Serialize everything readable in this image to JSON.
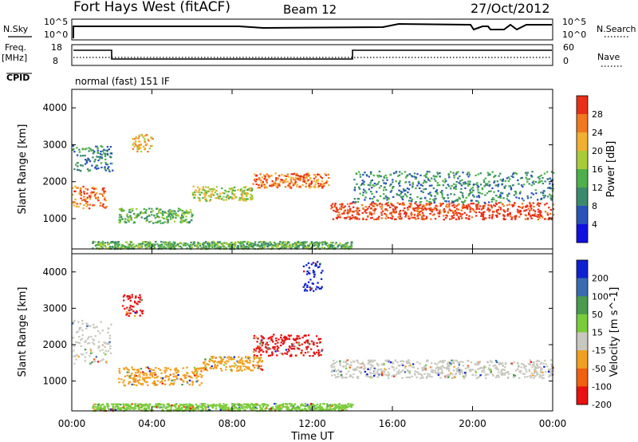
{
  "header": {
    "station": "Fort Hays West (fitACF)",
    "beam": "Beam 12",
    "date": "27/Oct/2012"
  },
  "status_panels": {
    "nsky_label": "N.Sky",
    "nsearch_label": "N.Search",
    "noise_ticks": [
      "10^5",
      "10^0"
    ],
    "freq_label_top": "Freq.",
    "freq_label_unit": "[MHz]",
    "freq_ticks": [
      "18",
      "8"
    ],
    "nave_label": "Nave",
    "nave_ticks": [
      "60",
      "0"
    ],
    "cpid_label": "CPID",
    "cpid_text": "normal (fast) 151 IF"
  },
  "chart_data": [
    {
      "type": "heatmap",
      "panel": "power",
      "ylabel": "Slant Range [km]",
      "xlabel": "",
      "yticks": [
        "1000",
        "2000",
        "3000",
        "4000"
      ],
      "ytick_values": [
        1000,
        2000,
        3000,
        4000
      ],
      "ylim": [
        180,
        4500
      ],
      "xlim": [
        0,
        24
      ],
      "colorbar": {
        "label": "Power [dB]",
        "ticks": [
          "4",
          "8",
          "12",
          "16",
          "20",
          "24",
          "28"
        ],
        "colors": [
          "#1010e0",
          "#2a52b8",
          "#3c8a6e",
          "#4db04a",
          "#a8cc38",
          "#f0b030",
          "#f07820",
          "#e83018"
        ]
      },
      "echo_bands": [
        {
          "t0": 0.0,
          "t1": 1.7,
          "r0": 1300,
          "r1": 1900,
          "level": 6
        },
        {
          "t0": 0.0,
          "t1": 2.0,
          "r0": 2300,
          "r1": 3000,
          "level": 2
        },
        {
          "t0": 2.3,
          "t1": 6.0,
          "r0": 900,
          "r1": 1300,
          "level": 3
        },
        {
          "t0": 6.0,
          "t1": 9.0,
          "r0": 1500,
          "r1": 1900,
          "level": 4
        },
        {
          "t0": 9.0,
          "t1": 12.8,
          "r0": 1850,
          "r1": 2250,
          "level": 6
        },
        {
          "t0": 12.9,
          "t1": 24.0,
          "r0": 1000,
          "r1": 1450,
          "level": 7
        },
        {
          "t0": 14.0,
          "t1": 24.0,
          "r0": 1450,
          "r1": 2300,
          "level": 2
        },
        {
          "t0": 3.0,
          "t1": 4.0,
          "r0": 2800,
          "r1": 3300,
          "level": 5
        },
        {
          "t0": 1.0,
          "t1": 14.0,
          "r0": 200,
          "r1": 400,
          "level": 3
        }
      ]
    },
    {
      "type": "heatmap",
      "panel": "velocity",
      "ylabel": "Slant Range [km]",
      "xlabel": "Time UT",
      "yticks": [
        "1000",
        "2000",
        "3000",
        "4000"
      ],
      "ytick_values": [
        1000,
        2000,
        3000,
        4000
      ],
      "ylim": [
        180,
        4500
      ],
      "xlim": [
        0,
        24
      ],
      "xticks": [
        "00:00",
        "04:00",
        "08:00",
        "12:00",
        "16:00",
        "20:00",
        "00:00"
      ],
      "xtick_values": [
        0,
        4,
        8,
        12,
        16,
        20,
        24
      ],
      "colorbar": {
        "label": "Velocity [m s^-1]",
        "ticks": [
          "200",
          "100",
          "50",
          "15",
          "-15",
          "-50",
          "-100",
          "-200"
        ],
        "colors": [
          "#1020d0",
          "#3a6ab0",
          "#4a9a50",
          "#7acc3a",
          "#c8c8c0",
          "#f0a020",
          "#f06010",
          "#e81010"
        ]
      },
      "echo_bands": [
        {
          "t0": 0.0,
          "t1": 2.0,
          "r0": 1500,
          "r1": 2700,
          "vel": "gray"
        },
        {
          "t0": 2.5,
          "t1": 3.5,
          "r0": 2800,
          "r1": 3400,
          "vel": "red"
        },
        {
          "t0": 2.3,
          "t1": 6.5,
          "r0": 900,
          "r1": 1400,
          "vel": "orange"
        },
        {
          "t0": 6.5,
          "t1": 9.5,
          "r0": 1300,
          "r1": 1700,
          "vel": "orange"
        },
        {
          "t0": 9.0,
          "t1": 12.5,
          "r0": 1700,
          "r1": 2300,
          "vel": "red"
        },
        {
          "t0": 12.9,
          "t1": 24.0,
          "r0": 1100,
          "r1": 1600,
          "vel": "gray"
        },
        {
          "t0": 1.0,
          "t1": 14.0,
          "r0": 200,
          "r1": 400,
          "vel": "green"
        },
        {
          "t0": 11.5,
          "t1": 12.5,
          "r0": 3500,
          "r1": 4300,
          "vel": "blue"
        }
      ]
    }
  ]
}
